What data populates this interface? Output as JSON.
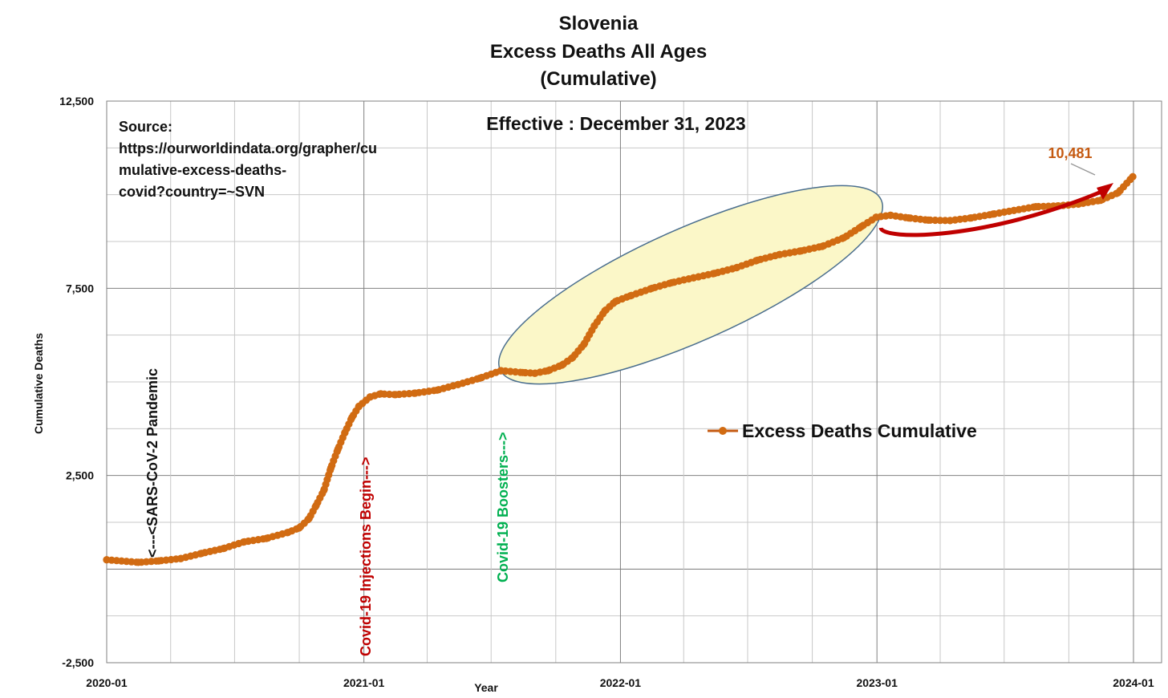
{
  "colors": {
    "series": "#d16b12",
    "series_line": "#c55a11",
    "ellipse_fill": "#fbf7c8",
    "ellipse_stroke": "#4a6e8e",
    "arrow": "#c00000",
    "annot_red": "#c00000",
    "annot_green": "#00b050",
    "grid_major": "#808080",
    "grid_minor": "#c8c8c8",
    "label_value": "#c55a11"
  },
  "chart_data": {
    "type": "line",
    "title": [
      "Slovenia",
      "Excess Deaths All Ages",
      "(Cumulative)"
    ],
    "xlabel": "Year",
    "ylabel": "Cumulative Deaths",
    "x_tick_labels": [
      "2020-01",
      "2021-01",
      "2022-01",
      "2023-01",
      "2024-01"
    ],
    "y_tick_labels": [
      "12,500",
      "7,500",
      "2,500",
      "-2,500"
    ],
    "ylim": [
      -2500,
      12500
    ],
    "xlim": [
      "2020-01-01",
      "2024-02-10"
    ],
    "grid": true,
    "legend": {
      "entries": [
        "Excess Deaths Cumulative"
      ],
      "placement": "center-right"
    },
    "series": [
      {
        "name": "Excess Deaths Cumulative",
        "points": [
          [
            "2020-01-01",
            250
          ],
          [
            "2020-02-15",
            180
          ],
          [
            "2020-03-15",
            220
          ],
          [
            "2020-04-15",
            280
          ],
          [
            "2020-05-15",
            420
          ],
          [
            "2020-06-15",
            550
          ],
          [
            "2020-07-15",
            730
          ],
          [
            "2020-08-15",
            820
          ],
          [
            "2020-09-15",
            980
          ],
          [
            "2020-10-01",
            1100
          ],
          [
            "2020-10-15",
            1350
          ],
          [
            "2020-10-25",
            1700
          ],
          [
            "2020-11-05",
            2100
          ],
          [
            "2020-11-15",
            2700
          ],
          [
            "2020-11-25",
            3200
          ],
          [
            "2020-12-05",
            3650
          ],
          [
            "2020-12-15",
            4050
          ],
          [
            "2020-12-25",
            4350
          ],
          [
            "2021-01-10",
            4600
          ],
          [
            "2021-01-25",
            4680
          ],
          [
            "2021-02-15",
            4660
          ],
          [
            "2021-03-15",
            4700
          ],
          [
            "2021-04-15",
            4780
          ],
          [
            "2021-05-15",
            4930
          ],
          [
            "2021-06-15",
            5100
          ],
          [
            "2021-07-15",
            5300
          ],
          [
            "2021-08-15",
            5250
          ],
          [
            "2021-09-01",
            5230
          ],
          [
            "2021-09-20",
            5300
          ],
          [
            "2021-10-10",
            5450
          ],
          [
            "2021-10-25",
            5650
          ],
          [
            "2021-11-10",
            6000
          ],
          [
            "2021-11-25",
            6500
          ],
          [
            "2021-12-10",
            6900
          ],
          [
            "2021-12-25",
            7150
          ],
          [
            "2022-01-15",
            7300
          ],
          [
            "2022-02-15",
            7500
          ],
          [
            "2022-03-15",
            7650
          ],
          [
            "2022-04-15",
            7780
          ],
          [
            "2022-05-15",
            7900
          ],
          [
            "2022-06-15",
            8050
          ],
          [
            "2022-07-15",
            8250
          ],
          [
            "2022-08-15",
            8400
          ],
          [
            "2022-09-15",
            8500
          ],
          [
            "2022-10-15",
            8620
          ],
          [
            "2022-11-15",
            8850
          ],
          [
            "2022-12-10",
            9150
          ],
          [
            "2022-12-31",
            9400
          ],
          [
            "2023-01-20",
            9450
          ],
          [
            "2023-02-15",
            9380
          ],
          [
            "2023-03-15",
            9320
          ],
          [
            "2023-04-15",
            9310
          ],
          [
            "2023-05-15",
            9380
          ],
          [
            "2023-06-15",
            9480
          ],
          [
            "2023-07-15",
            9580
          ],
          [
            "2023-08-15",
            9680
          ],
          [
            "2023-09-15",
            9700
          ],
          [
            "2023-10-15",
            9750
          ],
          [
            "2023-11-15",
            9850
          ],
          [
            "2023-12-10",
            10050
          ],
          [
            "2023-12-31",
            10481
          ]
        ]
      }
    ],
    "annotations": {
      "source_label": "Source:",
      "source_lines": [
        "https://ourworldindata.org/grapher/cu",
        "mulative-excess-deaths-",
        "covid?country=~SVN"
      ],
      "effective": "Effective : December 31, 2023",
      "last_value_label": "10,481",
      "pandemic_label": "<---<SARS-CoV-2 Pandemic",
      "injections_label": "Covid-19 Injections Begin--->",
      "boosters_label": "Covid-19 Boosters--->"
    }
  }
}
